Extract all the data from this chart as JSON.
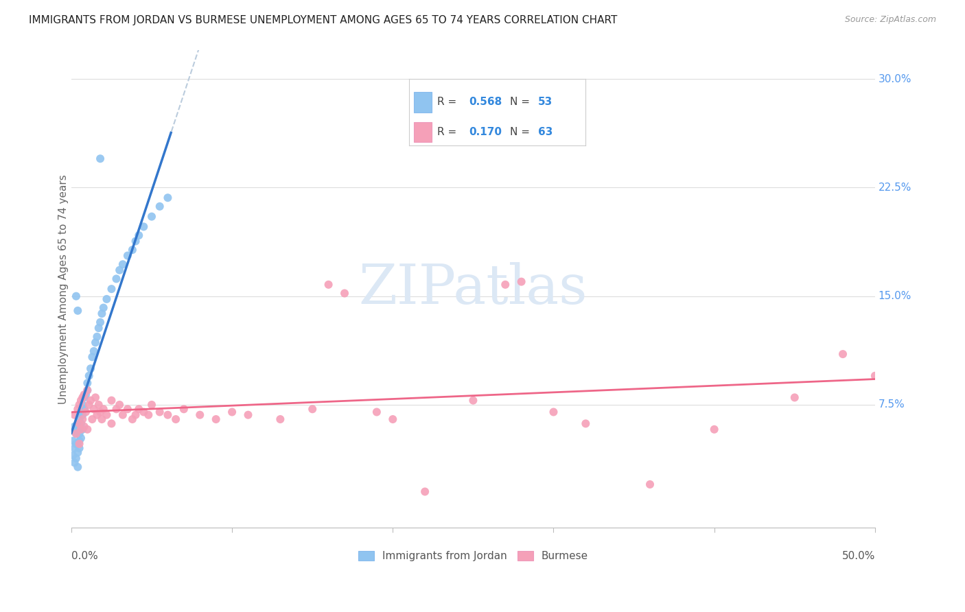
{
  "title": "IMMIGRANTS FROM JORDAN VS BURMESE UNEMPLOYMENT AMONG AGES 65 TO 74 YEARS CORRELATION CHART",
  "source": "Source: ZipAtlas.com",
  "ylabel": "Unemployment Among Ages 65 to 74 years",
  "color_jordan": "#90C4F0",
  "color_burmese": "#F5A0B8",
  "color_jordan_line": "#3377CC",
  "color_burmese_line": "#EE6688",
  "color_jordan_dash": "#BBCCDD",
  "xlim": [
    0.0,
    0.5
  ],
  "ylim": [
    -0.01,
    0.32
  ],
  "ytick_values": [
    0.075,
    0.15,
    0.225,
    0.3
  ],
  "ytick_labels": [
    "7.5%",
    "15.0%",
    "22.5%",
    "30.0%"
  ],
  "xtick_values": [
    0.0,
    0.1,
    0.2,
    0.3,
    0.4,
    0.5
  ],
  "jordan_x": [
    0.001,
    0.001,
    0.002,
    0.002,
    0.002,
    0.003,
    0.003,
    0.003,
    0.004,
    0.004,
    0.004,
    0.005,
    0.005,
    0.005,
    0.005,
    0.005,
    0.006,
    0.006,
    0.006,
    0.007,
    0.007,
    0.007,
    0.008,
    0.008,
    0.009,
    0.01,
    0.01,
    0.011,
    0.012,
    0.013,
    0.014,
    0.015,
    0.016,
    0.017,
    0.018,
    0.019,
    0.02,
    0.022,
    0.025,
    0.028,
    0.03,
    0.032,
    0.035,
    0.038,
    0.04,
    0.042,
    0.045,
    0.05,
    0.055,
    0.06,
    0.003,
    0.004,
    0.018
  ],
  "jordan_y": [
    0.05,
    0.04,
    0.06,
    0.045,
    0.035,
    0.055,
    0.048,
    0.038,
    0.058,
    0.042,
    0.032,
    0.065,
    0.06,
    0.055,
    0.05,
    0.045,
    0.07,
    0.062,
    0.052,
    0.075,
    0.068,
    0.058,
    0.08,
    0.072,
    0.082,
    0.09,
    0.085,
    0.095,
    0.1,
    0.108,
    0.112,
    0.118,
    0.122,
    0.128,
    0.132,
    0.138,
    0.142,
    0.148,
    0.155,
    0.162,
    0.168,
    0.172,
    0.178,
    0.182,
    0.188,
    0.192,
    0.198,
    0.205,
    0.212,
    0.218,
    0.15,
    0.14,
    0.245
  ],
  "burmese_x": [
    0.002,
    0.003,
    0.004,
    0.005,
    0.005,
    0.005,
    0.006,
    0.006,
    0.007,
    0.007,
    0.008,
    0.008,
    0.009,
    0.01,
    0.01,
    0.011,
    0.012,
    0.013,
    0.014,
    0.015,
    0.016,
    0.017,
    0.018,
    0.019,
    0.02,
    0.022,
    0.025,
    0.025,
    0.028,
    0.03,
    0.032,
    0.035,
    0.038,
    0.04,
    0.042,
    0.045,
    0.048,
    0.05,
    0.055,
    0.06,
    0.065,
    0.07,
    0.08,
    0.09,
    0.1,
    0.11,
    0.13,
    0.15,
    0.16,
    0.17,
    0.19,
    0.2,
    0.22,
    0.25,
    0.27,
    0.3,
    0.32,
    0.36,
    0.4,
    0.45,
    0.28,
    0.48,
    0.5
  ],
  "burmese_y": [
    0.068,
    0.055,
    0.072,
    0.075,
    0.062,
    0.048,
    0.078,
    0.058,
    0.08,
    0.065,
    0.082,
    0.06,
    0.07,
    0.085,
    0.058,
    0.075,
    0.078,
    0.065,
    0.072,
    0.08,
    0.068,
    0.075,
    0.07,
    0.065,
    0.072,
    0.068,
    0.078,
    0.062,
    0.072,
    0.075,
    0.068,
    0.072,
    0.065,
    0.068,
    0.072,
    0.07,
    0.068,
    0.075,
    0.07,
    0.068,
    0.065,
    0.072,
    0.068,
    0.065,
    0.07,
    0.068,
    0.065,
    0.072,
    0.158,
    0.152,
    0.07,
    0.065,
    0.015,
    0.078,
    0.158,
    0.07,
    0.062,
    0.02,
    0.058,
    0.08,
    0.16,
    0.11,
    0.095
  ]
}
